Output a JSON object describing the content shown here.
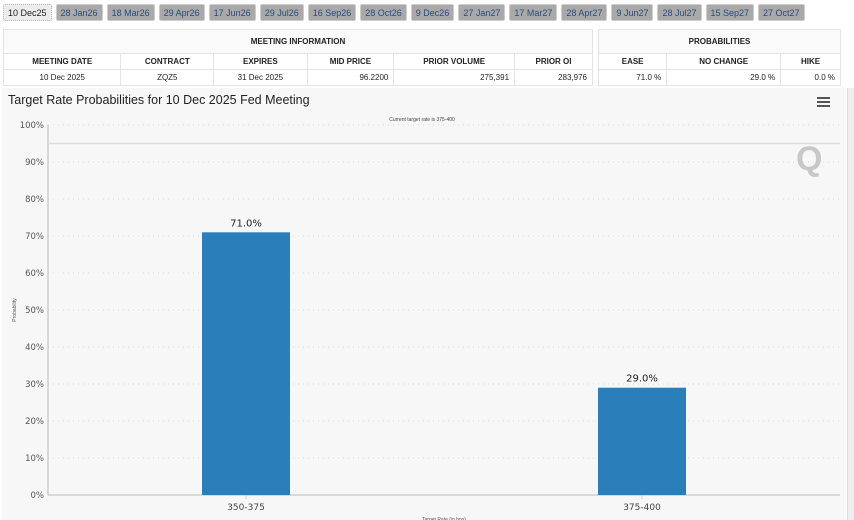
{
  "tabs": [
    "10 Dec25",
    "28 Jan26",
    "18 Mar26",
    "29 Apr26",
    "17 Jun26",
    "29 Jul26",
    "16 Sep26",
    "28 Oct26",
    "9 Dec26",
    "27 Jan27",
    "17 Mar27",
    "28 Apr27",
    "9 Jun27",
    "28 Jul27",
    "15 Sep27",
    "27 Oct27"
  ],
  "active_tab": "10 Dec25",
  "meeting_info": {
    "title": "MEETING INFORMATION",
    "headers": [
      "MEETING DATE",
      "CONTRACT",
      "EXPIRES",
      "MID PRICE",
      "PRIOR VOLUME",
      "PRIOR OI"
    ],
    "row": [
      "10 Dec 2025",
      "ZQZ5",
      "31 Dec 2025",
      "96.2200",
      "275,391",
      "283,976"
    ]
  },
  "probabilities": {
    "title": "PROBABILITIES",
    "headers": [
      "EASE",
      "NO CHANGE",
      "HIKE"
    ],
    "row": [
      "71.0 %",
      "29.0 %",
      "0.0 %"
    ]
  },
  "chart_title": "Target Rate Probabilities for 10 Dec 2025 Fed Meeting",
  "chart_data": {
    "type": "bar",
    "categories": [
      "350-375",
      "375-400"
    ],
    "values": [
      71.0,
      29.0
    ],
    "data_labels": [
      "71.0%",
      "29.0%"
    ],
    "xlabel": "Target Rate (in bps)",
    "ylabel": "Probability",
    "ylim": [
      0,
      100
    ],
    "yticks": [
      "0%",
      "10%",
      "20%",
      "30%",
      "40%",
      "50%",
      "60%",
      "70%",
      "80%",
      "90%",
      "100%"
    ],
    "annotation": "Current target rate is 375-400",
    "reference_line": 95,
    "bar_color": "#2a7fba",
    "grid": true
  }
}
